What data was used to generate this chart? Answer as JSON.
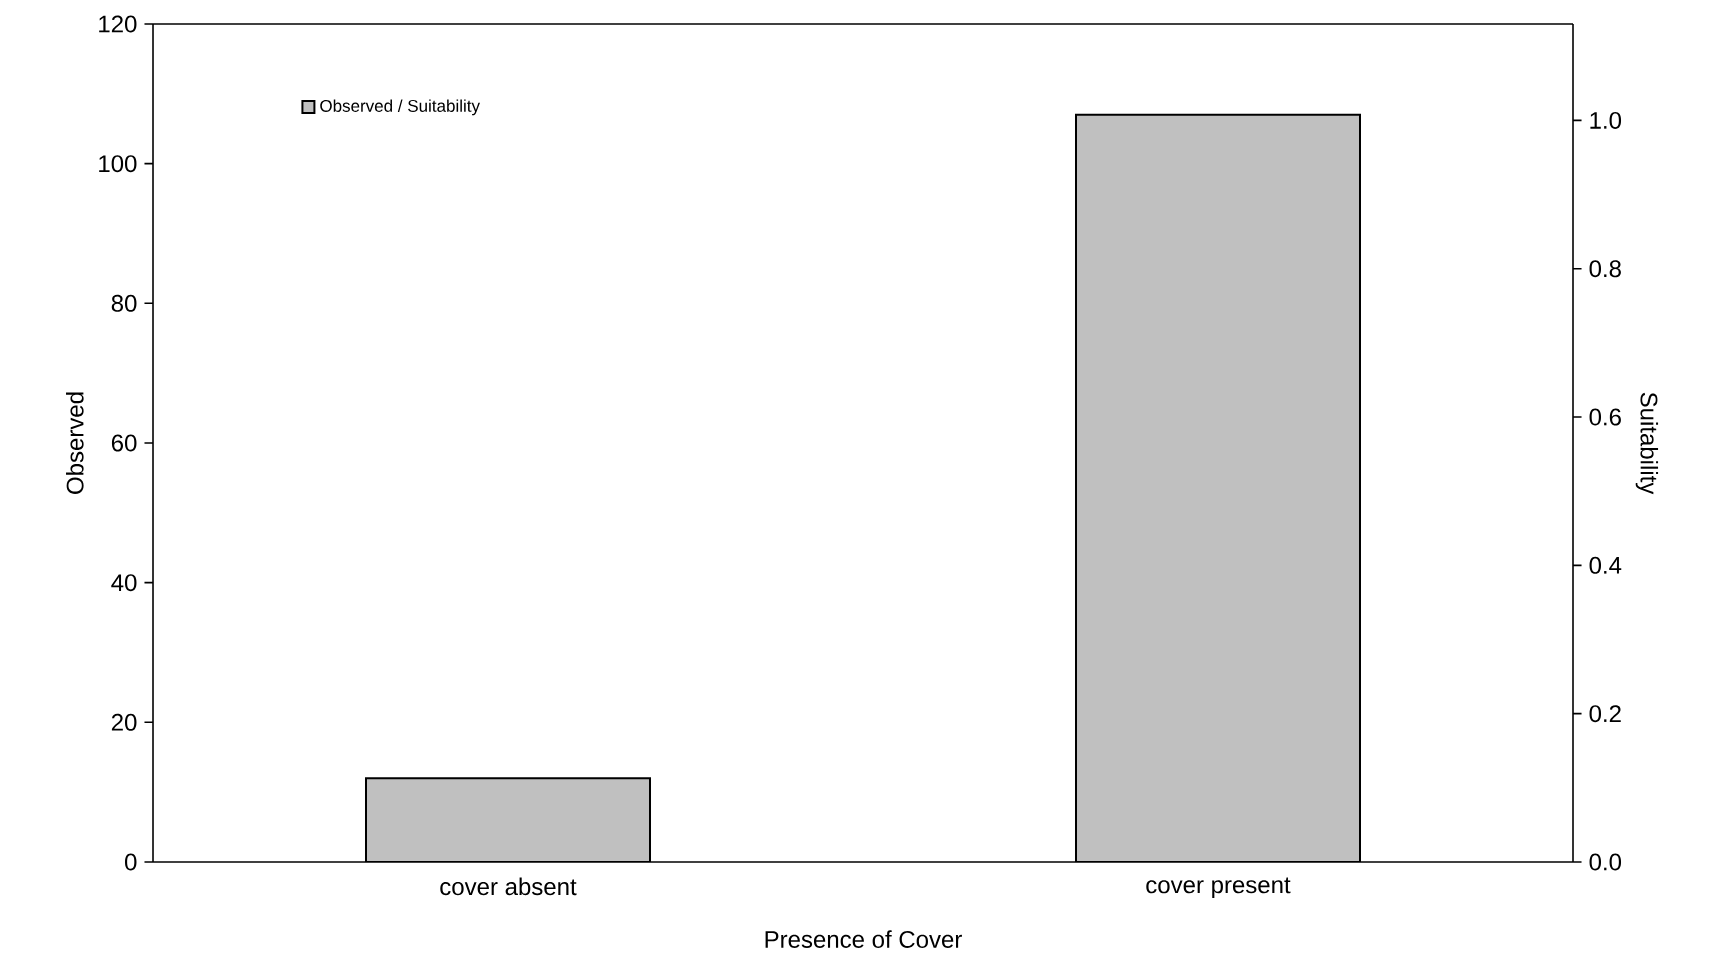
{
  "chart_data": {
    "type": "bar",
    "xlabel": "Presence of Cover",
    "ylabel": "Observed",
    "y2label": "Suitability",
    "categories": [
      "cover absent",
      "cover present"
    ],
    "series": [
      {
        "name": "Observed / Suitability",
        "color": "#c0c0c0",
        "values": [
          12,
          107
        ]
      }
    ],
    "ylim": [
      0,
      120
    ],
    "yticks": [
      0,
      20,
      40,
      60,
      80,
      100,
      120
    ],
    "y2lim": [
      0,
      1.13
    ],
    "y2ticks": [
      {
        "value": 0,
        "label": "0.0"
      },
      {
        "value": 0.2,
        "label": "0.2"
      },
      {
        "value": 0.4,
        "label": "0.4"
      },
      {
        "value": 0.6,
        "label": "0.6"
      },
      {
        "value": 0.8,
        "label": "0.8"
      },
      {
        "value": 1.0,
        "label": "1.0"
      }
    ],
    "legend": "top left"
  }
}
